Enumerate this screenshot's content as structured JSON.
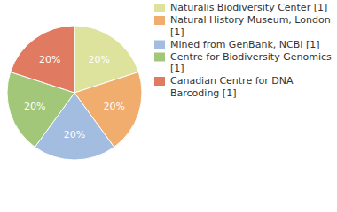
{
  "chart_data": {
    "type": "pie",
    "categories": [
      "Naturalis Biodiversity Center [1]",
      "Natural History Museum, London [1]",
      "Mined from GenBank, NCBI [1]",
      "Centre for Biodiversity Genomics [1]",
      "Canadian Centre for DNA Barcoding [1]"
    ],
    "values": [
      20,
      20,
      20,
      20,
      20
    ],
    "value_labels": [
      "20%",
      "20%",
      "20%",
      "20%",
      "20%"
    ],
    "colors": [
      "#dde29d",
      "#f0ad6e",
      "#a2bde0",
      "#a2c779",
      "#e07a60"
    ],
    "data_labels": true,
    "legend": "top-right"
  }
}
